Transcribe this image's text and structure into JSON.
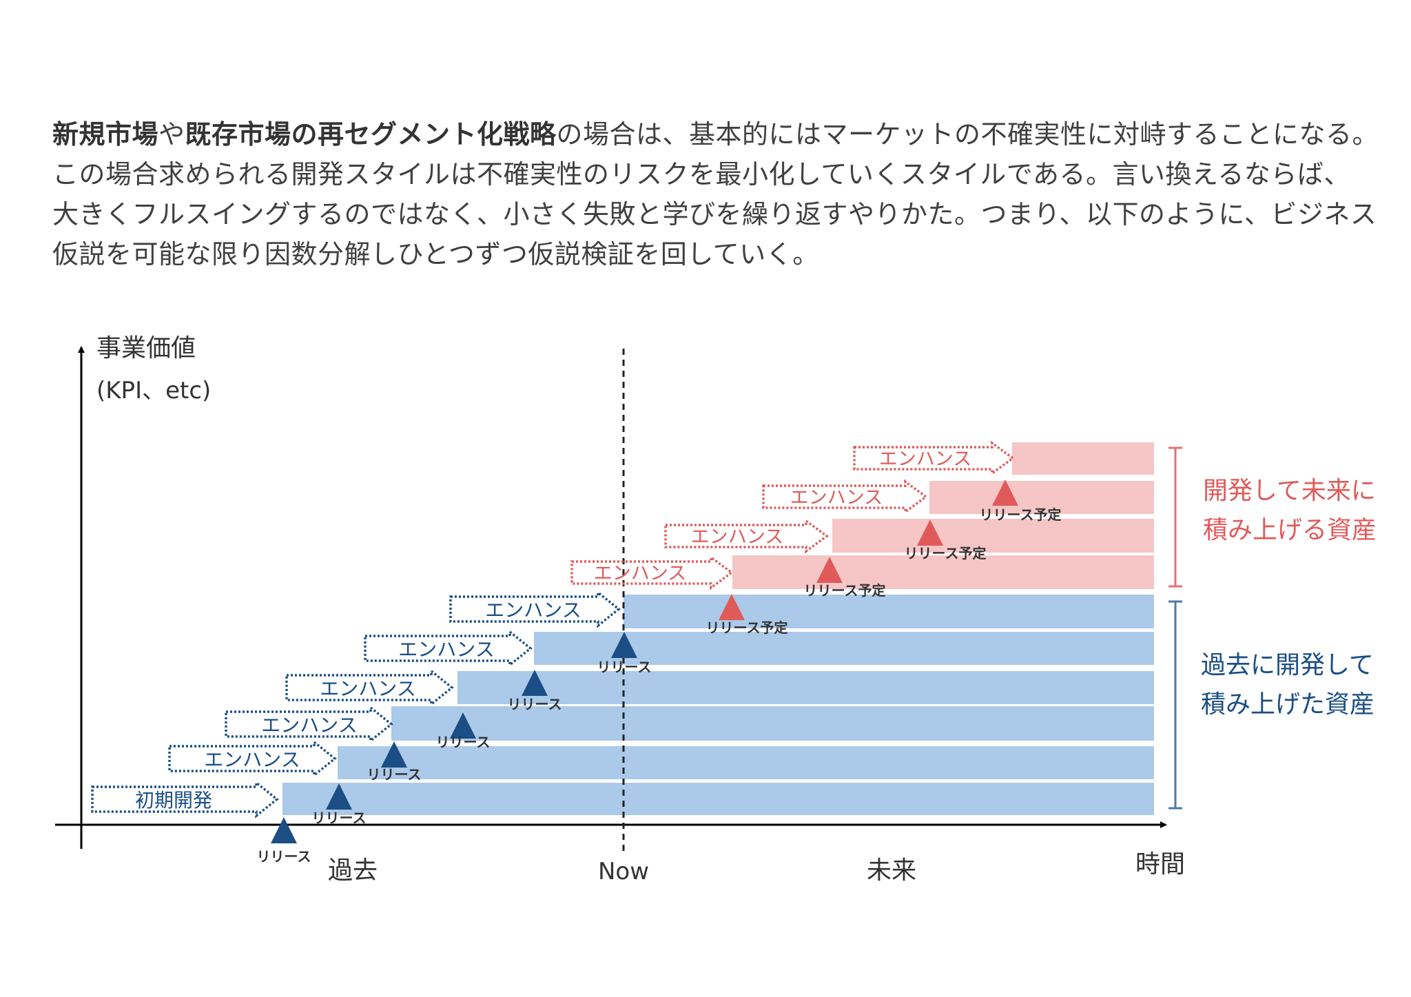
{
  "intro": {
    "line1": [
      {
        "text": "新規市場",
        "bold": true
      },
      {
        "text": "や",
        "bold": false
      },
      {
        "text": "既存市場の再セグメント化戦略",
        "bold": true
      },
      {
        "text": "の場合は、基本的にはマーケットの不確実性に対峙することになる。",
        "bold": false
      }
    ],
    "line2": "この場合求められる開発スタイルは不確実性のリスクを最小化していくスタイルである。言い換えるならば、",
    "line3": "大きくフルスイングするのではなく、小さく失敗と学びを繰り返すやりかた。つまり、以下のように、ビジネス",
    "line4": "仮説を可能な限り因数分解しひとつずつ仮説検証を回していく。"
  },
  "diagram": {
    "y_axis_label_1": "事業価値",
    "y_axis_label_2": "(KPI、etc)",
    "x_axis_label": "時間",
    "past_label": "過去",
    "now_label": "Now",
    "future_label": "未来",
    "past_asset_line1": "過去に開発して",
    "past_asset_line2": "積み上げた資産",
    "future_asset_line1": "開発して未来に",
    "future_asset_line2": "積み上げる資産",
    "release_label": "リリース",
    "planned_release_label": "リリース予定",
    "initial_dev_label": "初期開発",
    "enhance_label": "エンハンス",
    "colors": {
      "past": "#1a4e85",
      "past_layer": "#abc9e8",
      "future": "#e05a5a",
      "future_layer": "#f6c5c6",
      "axis": "#000000"
    },
    "past_steps": [
      {
        "arrow": "初期開発",
        "release": "リリース"
      },
      {
        "arrow": "エンハンス",
        "release": "リリース"
      },
      {
        "arrow": "エンハンス",
        "release": "リリース"
      },
      {
        "arrow": "エンハンス",
        "release": "リリース"
      },
      {
        "arrow": "エンハンス",
        "release": "リリース"
      },
      {
        "arrow": "エンハンス",
        "release": "リリース"
      }
    ],
    "future_steps": [
      {
        "arrow": "エンハンス",
        "release": "リリース予定"
      },
      {
        "arrow": "エンハンス",
        "release": "リリース予定"
      },
      {
        "arrow": "エンハンス",
        "release": "リリース予定"
      },
      {
        "arrow": "エンハンス",
        "release": "リリース予定"
      }
    ]
  }
}
